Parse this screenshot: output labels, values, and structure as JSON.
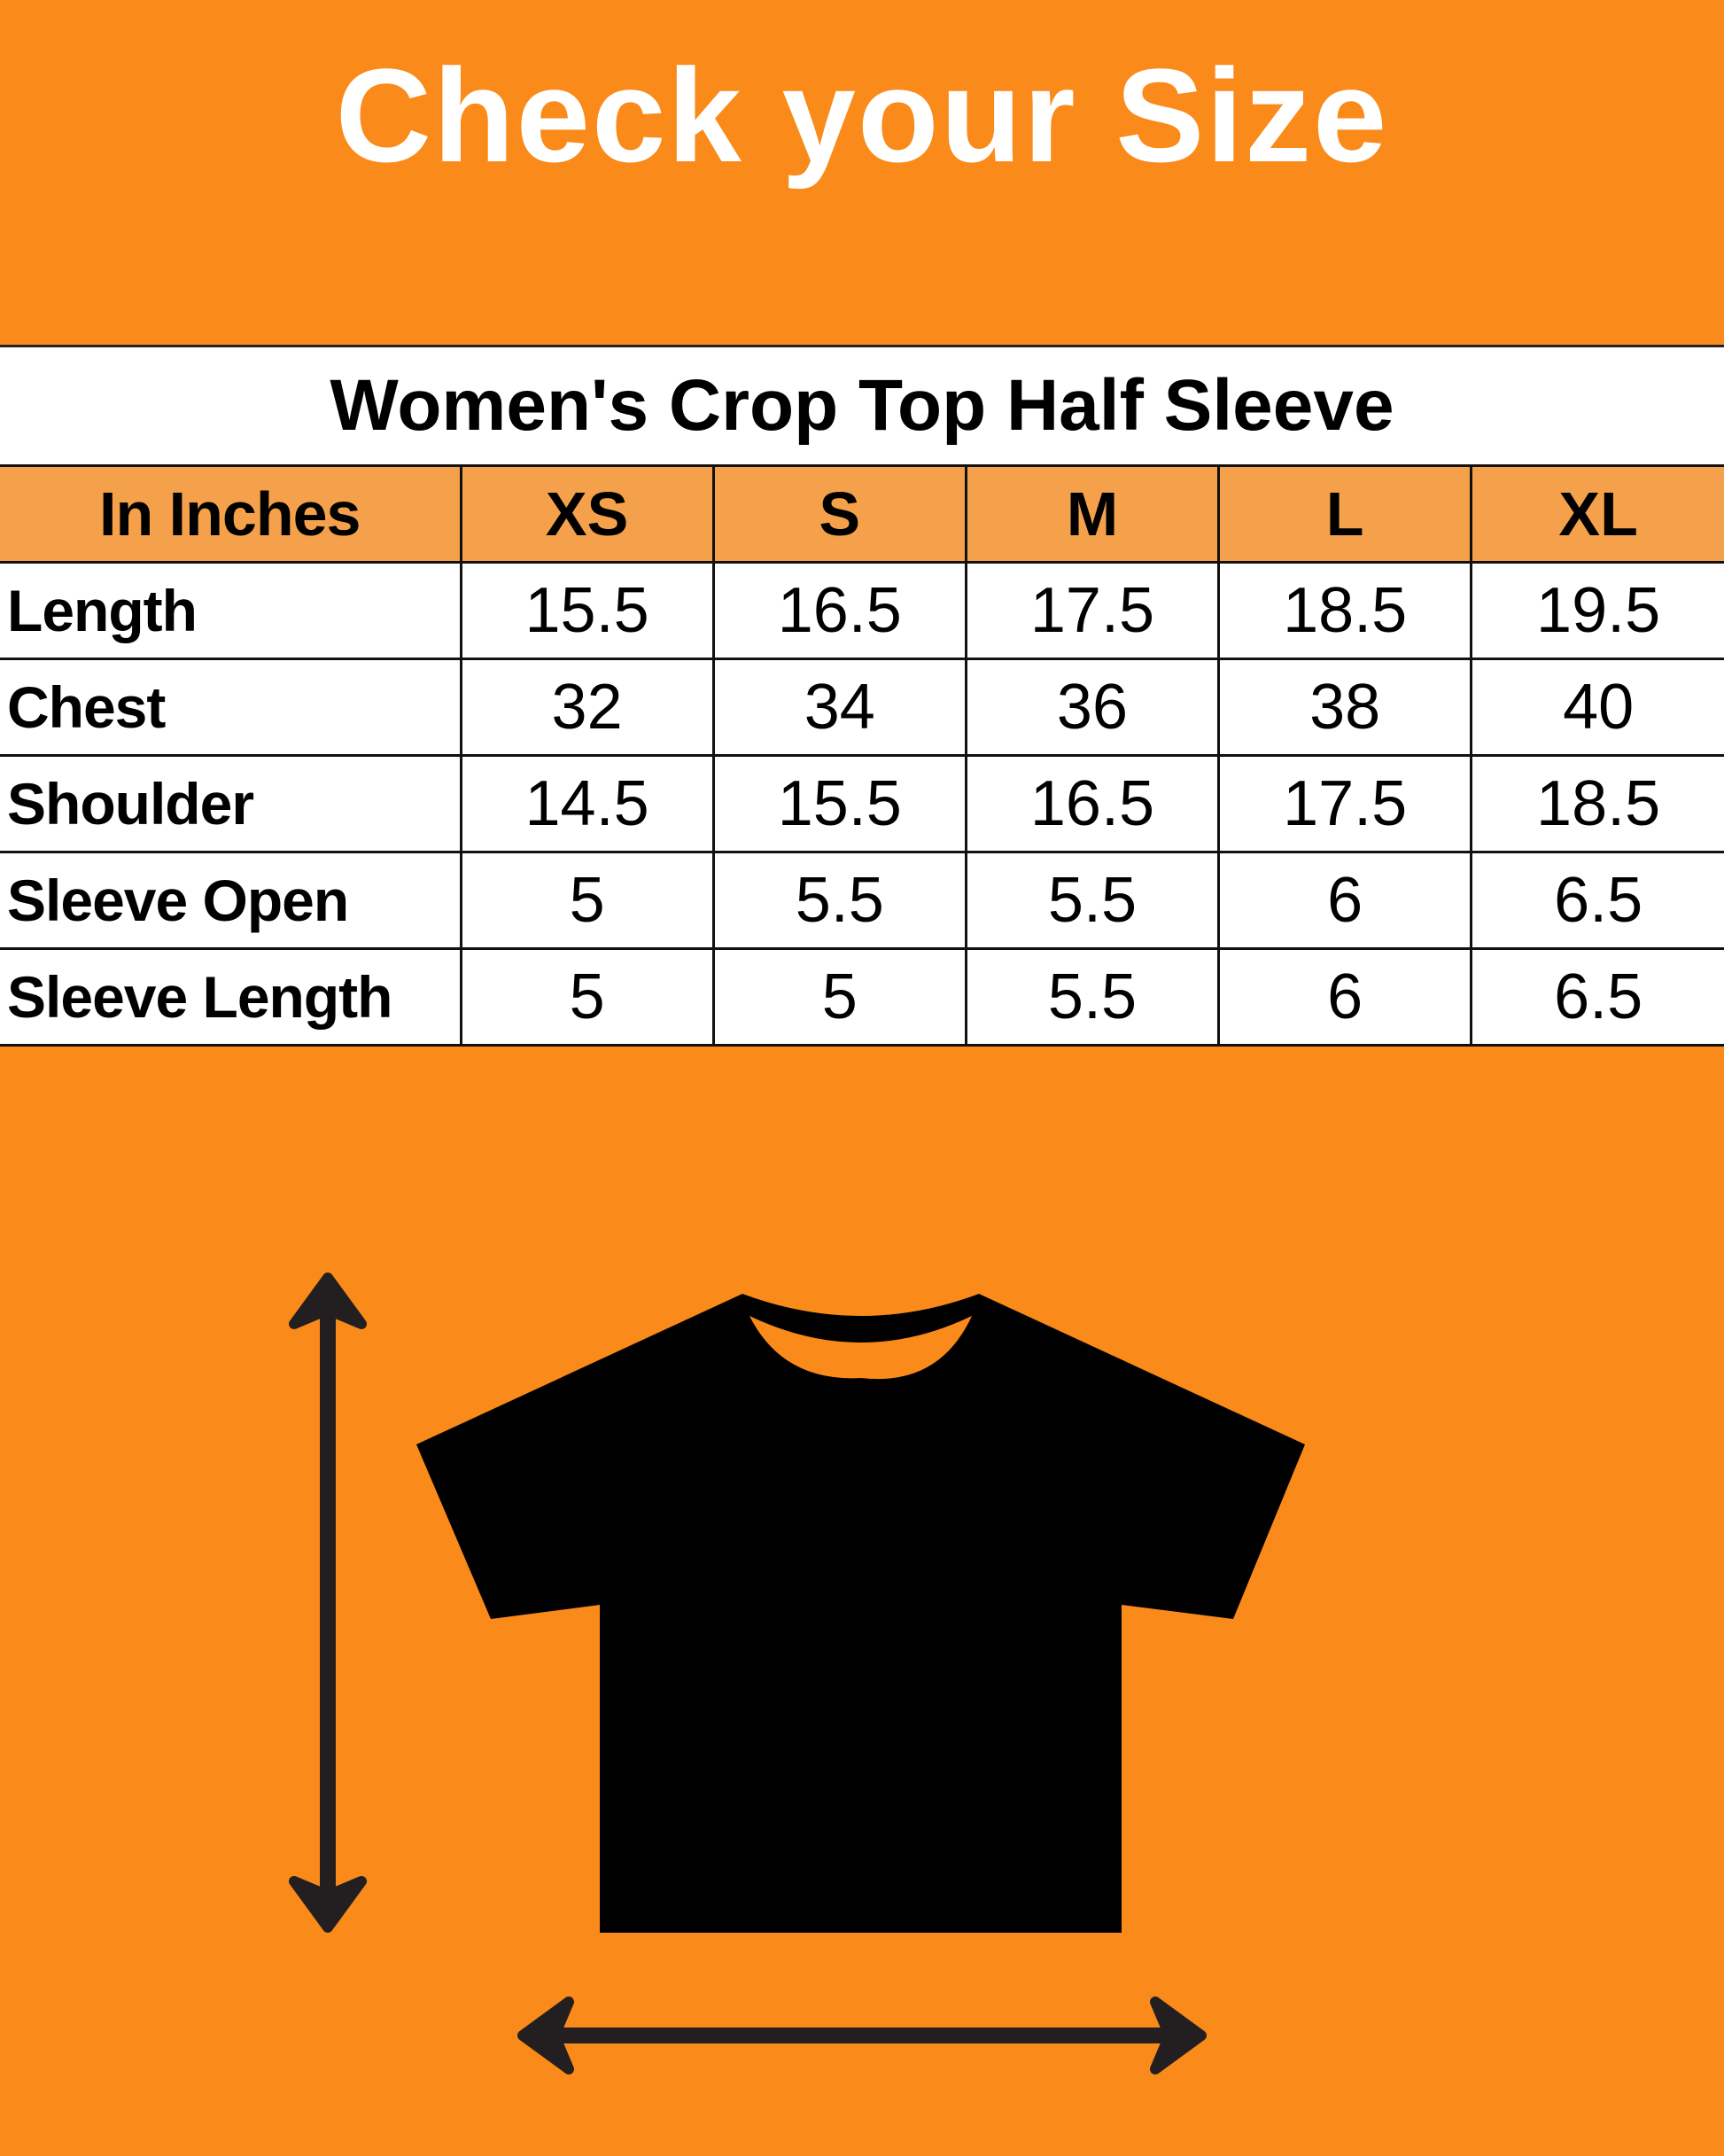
{
  "header": {
    "title": "Check your Size"
  },
  "size_table": {
    "title": "Women's Crop Top Half Sleeve",
    "columns": [
      "In Inches",
      "XS",
      "S",
      "M",
      "L",
      "XL"
    ],
    "rows": [
      {
        "label": "Length",
        "values": [
          "15.5",
          "16.5",
          "17.5",
          "18.5",
          "19.5"
        ]
      },
      {
        "label": "Chest",
        "values": [
          "32",
          "34",
          "36",
          "38",
          "40"
        ]
      },
      {
        "label": "Shoulder",
        "values": [
          "14.5",
          "15.5",
          "16.5",
          "17.5",
          "18.5"
        ]
      },
      {
        "label": "Sleeve Open",
        "values": [
          "5",
          "5.5",
          "5.5",
          "6",
          "6.5"
        ]
      },
      {
        "label": "Sleeve Length",
        "values": [
          "5",
          "5",
          "5.5",
          "6",
          "6.5"
        ]
      }
    ]
  },
  "colors": {
    "background": "#FA8A1A",
    "header_row": "#F5A04A",
    "shirt": "#000000",
    "arrows": "#231F20"
  },
  "illustration": {
    "icons": [
      "tshirt-icon",
      "vertical-double-arrow-icon",
      "horizontal-double-arrow-icon"
    ]
  }
}
